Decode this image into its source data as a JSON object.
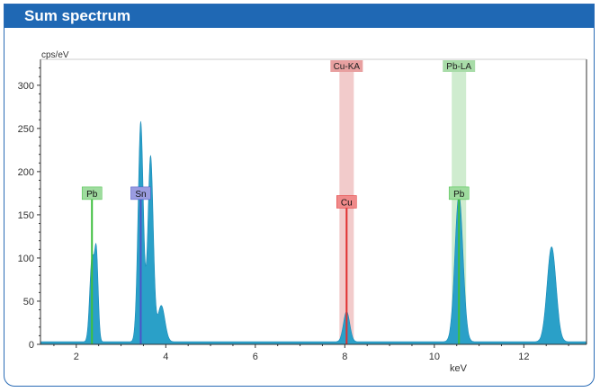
{
  "header": {
    "title": "Sum spectrum"
  },
  "chart_data": {
    "type": "area",
    "title": "Sum spectrum",
    "ylabel": "cps/eV",
    "xlabel": "keV",
    "xlim": [
      1.2,
      13.4
    ],
    "ylim": [
      0,
      330
    ],
    "xticks": [
      2,
      4,
      6,
      8,
      10,
      12
    ],
    "yticks": [
      0,
      50,
      100,
      150,
      200,
      250,
      300
    ],
    "grid": false,
    "peaks": [
      {
        "center": 2.35,
        "height": 95,
        "width": 0.05
      },
      {
        "center": 2.45,
        "height": 98,
        "width": 0.04
      },
      {
        "center": 3.44,
        "height": 255,
        "width": 0.06
      },
      {
        "center": 3.66,
        "height": 215,
        "width": 0.06
      },
      {
        "center": 3.9,
        "height": 42,
        "width": 0.08
      },
      {
        "center": 8.04,
        "height": 35,
        "width": 0.07
      },
      {
        "center": 10.55,
        "height": 170,
        "width": 0.09
      },
      {
        "center": 12.62,
        "height": 110,
        "width": 0.1
      }
    ],
    "element_lines": [
      {
        "label": "Pb",
        "x": 2.35,
        "height": 175,
        "color": "#3fbf3f",
        "label_bg": "#9fdc9f"
      },
      {
        "label": "Sn",
        "x": 3.44,
        "height": 175,
        "color": "#4a55c8",
        "label_bg": "#9a9ce0"
      },
      {
        "label": "Cu",
        "x": 8.04,
        "height": 165,
        "color": "#e03030",
        "label_bg": "#f08a8a"
      },
      {
        "label": "Pb",
        "x": 10.55,
        "height": 175,
        "color": "#3fbf3f",
        "label_bg": "#9fdc9f"
      }
    ],
    "bands": [
      {
        "label": "Cu-KA",
        "x": 8.04,
        "color": "#e8a0a0"
      },
      {
        "label": "Pb-LA",
        "x": 10.55,
        "color": "#a8dca8"
      }
    ],
    "colors": {
      "spectrum": "#2aa0c8",
      "axis": "#333333"
    }
  }
}
